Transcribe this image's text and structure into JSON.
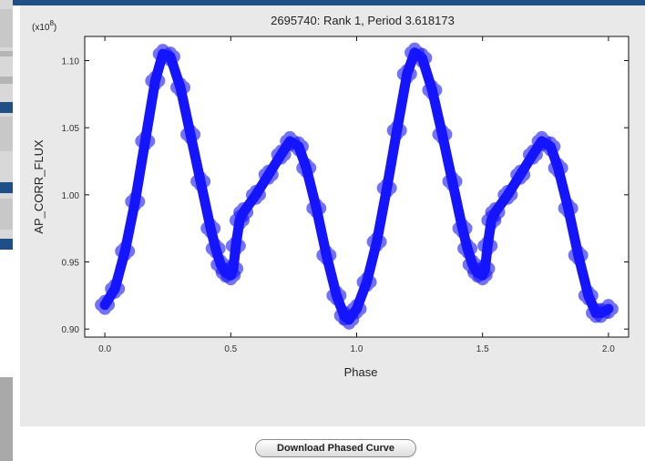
{
  "chart_data": {
    "type": "scatter",
    "title": "2695740: Rank 1, Period 3.618173",
    "xlabel": "Phase",
    "ylabel": "AP_CORR_FLUX",
    "y_multiplier_label": "(x10",
    "y_multiplier_exponent": "8",
    "y_multiplier_close": ")",
    "xlim": [
      -0.08,
      2.08
    ],
    "ylim": [
      0.894,
      1.118
    ],
    "x_ticks": [
      0.0,
      0.5,
      1.0,
      1.5,
      2.0
    ],
    "x_tick_labels": [
      "0.0",
      "0.5",
      "1.0",
      "1.5",
      "2.0"
    ],
    "y_ticks": [
      0.9,
      0.95,
      1.0,
      1.05,
      1.1
    ],
    "y_tick_labels": [
      "0.90",
      "0.95",
      "1.00",
      "1.05",
      "1.10"
    ],
    "grid": false,
    "marker": "+",
    "marker_color": "#1414ff",
    "series": [
      {
        "x": [
          0.0,
          0.04,
          0.08,
          0.12,
          0.16,
          0.2,
          0.23,
          0.26,
          0.3,
          0.34,
          0.38,
          0.42,
          0.44,
          0.46,
          0.48,
          0.5,
          0.51,
          0.52,
          0.535,
          0.55,
          0.6,
          0.65,
          0.7,
          0.735,
          0.77,
          0.8,
          0.84,
          0.88,
          0.92,
          0.95,
          0.97,
          1.0,
          1.04,
          1.08,
          1.12,
          1.16,
          1.2,
          1.23,
          1.26,
          1.3,
          1.34,
          1.38,
          1.42,
          1.44,
          1.46,
          1.48,
          1.5,
          1.51,
          1.52,
          1.535,
          1.55,
          1.6,
          1.65,
          1.7,
          1.735,
          1.77,
          1.8,
          1.84,
          1.88,
          1.92,
          1.95,
          1.97,
          2.0
        ],
        "y": [
          0.918,
          0.93,
          0.958,
          0.995,
          1.04,
          1.085,
          1.105,
          1.103,
          1.08,
          1.045,
          1.01,
          0.975,
          0.96,
          0.948,
          0.942,
          0.94,
          0.945,
          0.962,
          0.981,
          0.987,
          1.0,
          1.015,
          1.03,
          1.04,
          1.036,
          1.02,
          0.99,
          0.955,
          0.925,
          0.91,
          0.907,
          0.915,
          0.935,
          0.965,
          1.005,
          1.048,
          1.09,
          1.106,
          1.102,
          1.078,
          1.045,
          1.01,
          0.975,
          0.96,
          0.948,
          0.942,
          0.94,
          0.945,
          0.962,
          0.981,
          0.987,
          1.0,
          1.015,
          1.03,
          1.04,
          1.036,
          1.02,
          0.99,
          0.955,
          0.925,
          0.912,
          0.912,
          0.915
        ]
      }
    ]
  },
  "download_button": {
    "label": "Download Phased Curve"
  }
}
